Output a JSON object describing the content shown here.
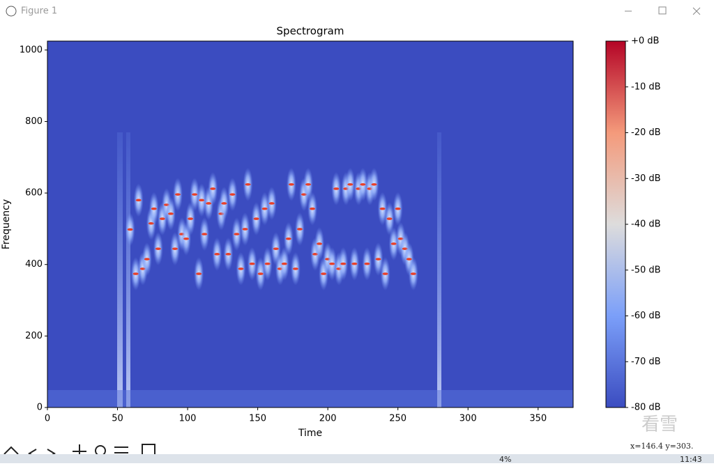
{
  "window": {
    "title": "Figure 1"
  },
  "chart_data": {
    "type": "spectrogram",
    "title": "Spectrogram",
    "x_label": "Time",
    "y_label": "Frequency",
    "xlim": [
      0,
      375
    ],
    "ylim": [
      0,
      1025
    ],
    "xticks": [
      0,
      50,
      100,
      150,
      200,
      250,
      300,
      350
    ],
    "yticks": [
      0,
      200,
      400,
      600,
      800,
      1000
    ],
    "background_color": "#3b4cc0",
    "x": [
      59,
      63,
      65,
      68,
      71,
      74,
      76,
      79,
      82,
      85,
      88,
      91,
      93,
      96,
      99,
      102,
      105,
      108,
      110,
      112,
      115,
      118,
      121,
      124,
      126,
      129,
      132,
      135,
      138,
      141,
      143,
      146,
      149,
      152,
      155,
      157,
      160,
      163,
      166,
      169,
      172,
      174,
      177,
      180,
      183,
      186,
      189,
      191,
      194,
      197,
      200,
      203,
      206,
      208,
      211,
      213,
      216,
      219,
      222,
      225,
      228,
      230,
      233,
      236,
      239,
      241,
      244,
      247,
      250,
      252,
      255,
      258,
      261
    ],
    "values": [
      498,
      374,
      580,
      388,
      415,
      515,
      556,
      444,
      528,
      567,
      542,
      444,
      596,
      485,
      472,
      528,
      596,
      374,
      580,
      485,
      571,
      612,
      429,
      542,
      571,
      429,
      596,
      485,
      388,
      499,
      624,
      402,
      528,
      374,
      556,
      402,
      571,
      444,
      388,
      402,
      472,
      624,
      388,
      499,
      596,
      624,
      556,
      429,
      458,
      374,
      415,
      402,
      612,
      388,
      402,
      612,
      624,
      402,
      612,
      624,
      402,
      612,
      624,
      415,
      556,
      374,
      528,
      458,
      556,
      472,
      444,
      415,
      374
    ],
    "colorbar": {
      "lim": [
        -80,
        0
      ],
      "ticks": [
        {
          "value": 0,
          "label": "+0 dB"
        },
        {
          "value": -10,
          "label": "-10 dB"
        },
        {
          "value": -20,
          "label": "-20 dB"
        },
        {
          "value": -30,
          "label": "-30 dB"
        },
        {
          "value": -40,
          "label": "-40 dB"
        },
        {
          "value": -50,
          "label": "-50 dB"
        },
        {
          "value": -60,
          "label": "-60 dB"
        },
        {
          "value": -70,
          "label": "-70 dB"
        },
        {
          "value": -80,
          "label": "-80 dB"
        }
      ]
    }
  },
  "status": "x=146.4  y=303.",
  "watermark": "看雪",
  "taskbar": {
    "battery": "4%",
    "clock": "11:43"
  }
}
